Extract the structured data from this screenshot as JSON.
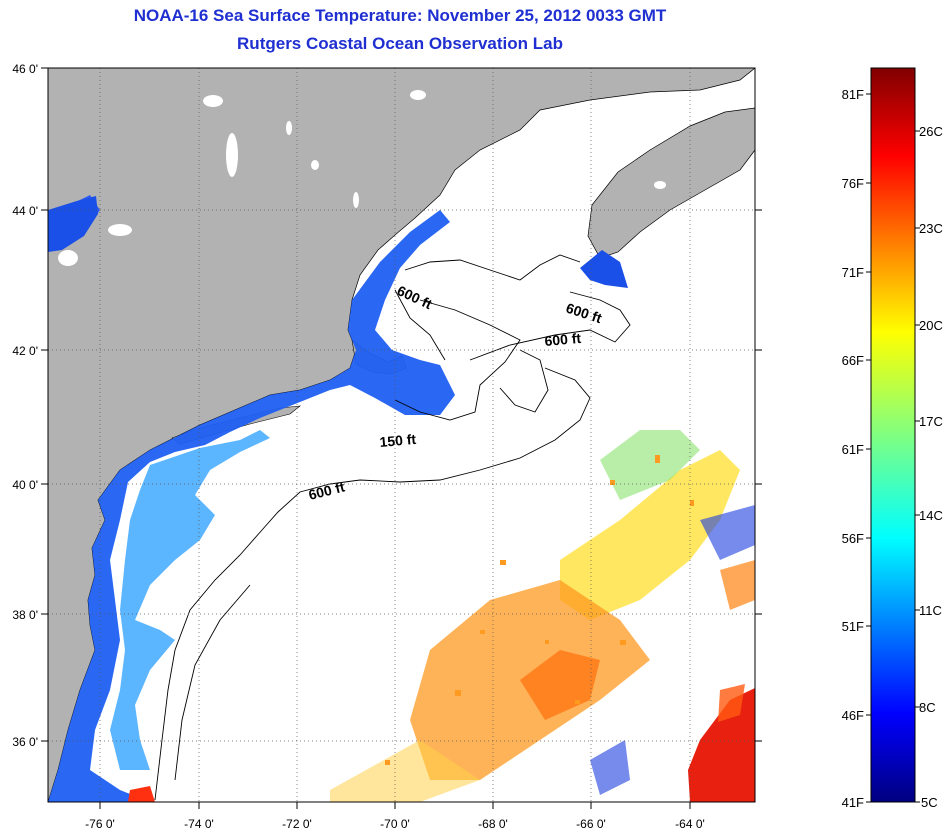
{
  "header": {
    "title": "NOAA-16 Sea Surface Temperature:  November 25, 2012 0033 GMT",
    "subtitle": "Rutgers Coastal Ocean Observation Lab"
  },
  "map": {
    "lon_range": [
      -77,
      -63
    ],
    "lat_range": [
      35,
      46
    ],
    "lon_labels": [
      "-76 0'",
      "-74 0'",
      "-72 0'",
      "-70 0'",
      "-68 0'",
      "-66 0'",
      "-64 0'"
    ],
    "lat_labels": [
      "46 0'",
      "44 0'",
      "42 0'",
      "40 0'",
      "38 0'",
      "36 0'"
    ],
    "land_color": "#b2b2b2",
    "isobath_labels": [
      "600 ft",
      "600 ft",
      "600 ft",
      "150 ft",
      "600 ft"
    ]
  },
  "colorbar": {
    "fahrenheit_labels": [
      "81F",
      "76F",
      "71F",
      "66F",
      "61F",
      "56F",
      "51F",
      "46F",
      "41F"
    ],
    "celsius_labels": [
      "26C",
      "23C",
      "20C",
      "17C",
      "14C",
      "11C",
      "8C",
      "5C"
    ]
  }
}
